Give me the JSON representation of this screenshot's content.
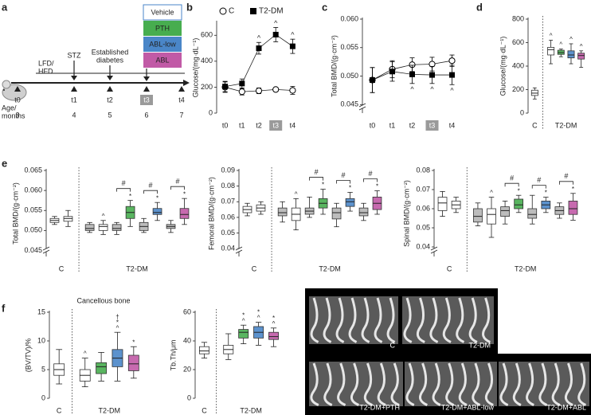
{
  "diagram": {
    "panel": "a",
    "legend": [
      {
        "label": "Vehicle",
        "color": "#ffffff"
      },
      {
        "label": "PTH",
        "color": "#47ad4f"
      },
      {
        "label": "ABL-low",
        "color": "#4a86c8"
      },
      {
        "label": "ABL",
        "color": "#c15aa6"
      }
    ],
    "diet": [
      "LFD/",
      "HFD"
    ],
    "events": [
      "STZ",
      "Established",
      "diabetes"
    ],
    "age_label": [
      "Age/",
      "months"
    ],
    "timepoints": [
      "t0",
      "t1",
      "t2",
      "t3",
      "t4"
    ],
    "ages": [
      3,
      4,
      5,
      6,
      7
    ]
  },
  "chart_data": [
    {
      "panel": "b",
      "type": "line",
      "ylabel": "Glucose/(mg·dL⁻¹)",
      "categories": [
        "t0",
        "t1",
        "t2",
        "t3",
        "t4"
      ],
      "highlight_category": 3,
      "ylim": [
        0,
        700
      ],
      "yticks": [
        0,
        200,
        400,
        600
      ],
      "legend": true,
      "series": [
        {
          "name": "C",
          "marker": "circle",
          "color": "#000000",
          "values": [
            200,
            165,
            172,
            182,
            175
          ],
          "errors": [
            40,
            25,
            22,
            15,
            30
          ]
        },
        {
          "name": "T2-DM",
          "marker": "square",
          "color": "#000000",
          "values": [
            205,
            228,
            500,
            605,
            515
          ],
          "errors": [
            40,
            35,
            45,
            55,
            55
          ],
          "notes": [
            null,
            null,
            "^",
            "^",
            "^"
          ]
        }
      ]
    },
    {
      "panel": "c",
      "type": "line",
      "ylabel": "Total BMD/(g·cm⁻²)",
      "categories": [
        "t0",
        "t1",
        "t2",
        "t3",
        "t4"
      ],
      "highlight_category": 3,
      "ylim": [
        0.0435,
        0.06
      ],
      "yticks": [
        0.045,
        {
          "value": 0.05,
          "label": "0.050"
        },
        0.055,
        {
          "value": 0.06,
          "label": "0.060"
        }
      ],
      "axis_break": true,
      "note_side": "below",
      "series": [
        {
          "name": "C",
          "marker": "circle",
          "color": "#000000",
          "values": [
            0.0493,
            0.0512,
            0.052,
            0.0521,
            0.0527
          ],
          "errors": [
            0.0022,
            0.0015,
            0.0012,
            0.0012,
            0.001
          ]
        },
        {
          "name": "T2-DM",
          "marker": "square",
          "color": "#000000",
          "values": [
            0.0493,
            0.0508,
            0.0503,
            0.0502,
            0.0502
          ],
          "errors": [
            0.0022,
            0.0017,
            0.0016,
            0.0015,
            0.0017
          ],
          "notes": [
            null,
            null,
            "^",
            "^",
            "^"
          ]
        }
      ]
    },
    {
      "panel": "d",
      "type": "box",
      "ylabel": "Glucose/(mg·dL⁻¹)",
      "ylim": [
        0,
        800
      ],
      "yticks": [
        0,
        200,
        400,
        600,
        800
      ],
      "groups": [
        {
          "label": "C",
          "boxes": [
            {
              "color": "#ffffff",
              "min": 120,
              "q1": 150,
              "median": 170,
              "q3": 195,
              "max": 215
            }
          ]
        },
        {
          "label": "T2-DM",
          "boxes": [
            {
              "color": "#ffffff",
              "min": 420,
              "q1": 495,
              "median": 540,
              "q3": 560,
              "max": 620,
              "notes": [
                "^"
              ]
            },
            {
              "color": "#47ad4f",
              "min": 480,
              "q1": 500,
              "median": 515,
              "q3": 535,
              "max": 545,
              "notes": [
                "^"
              ]
            },
            {
              "color": "#4a86c8",
              "min": 420,
              "q1": 470,
              "median": 495,
              "q3": 530,
              "max": 590,
              "notes": [
                "^"
              ]
            },
            {
              "color": "#c15aa6",
              "min": 390,
              "q1": 460,
              "median": 490,
              "q3": 510,
              "max": 530,
              "notes": [
                "^"
              ]
            }
          ]
        }
      ]
    },
    {
      "panel": "e",
      "type": "box",
      "ylabel": "Total BMD/(g·cm⁻²)",
      "ylim": [
        0.0435,
        0.065
      ],
      "axis_break": true,
      "yticks": [
        0.045,
        {
          "value": 0.05,
          "label": "0.050"
        },
        0.055,
        {
          "value": 0.06,
          "label": "0.060"
        },
        0.065
      ],
      "groups": [
        {
          "label": "C",
          "boxes": [
            {
              "color": "#ffffff",
              "min": 0.0515,
              "q1": 0.052,
              "median": 0.0525,
              "q3": 0.053,
              "max": 0.0535
            },
            {
              "color": "#ffffff",
              "min": 0.051,
              "q1": 0.0523,
              "median": 0.053,
              "q3": 0.0535,
              "max": 0.055
            }
          ]
        },
        {
          "label": "T2-DM",
          "boxes": [
            {
              "color": "#b5b5b5",
              "min": 0.0495,
              "q1": 0.05,
              "median": 0.0505,
              "q3": 0.0515,
              "max": 0.052
            },
            {
              "color": "#ffffff",
              "min": 0.049,
              "q1": 0.05,
              "median": 0.051,
              "q3": 0.0515,
              "max": 0.0525,
              "notes": [
                "^"
              ]
            },
            {
              "color": "#b5b5b5",
              "min": 0.049,
              "q1": 0.05,
              "median": 0.0505,
              "q3": 0.0515,
              "max": 0.052
            },
            {
              "color": "#47ad4f",
              "min": 0.051,
              "q1": 0.053,
              "median": 0.0545,
              "q3": 0.056,
              "max": 0.0575,
              "notes": [
                "*"
              ],
              "bracket": "#"
            },
            {
              "color": "#b5b5b5",
              "min": 0.0495,
              "q1": 0.05,
              "median": 0.051,
              "q3": 0.052,
              "max": 0.053
            },
            {
              "color": "#4a86c8",
              "min": 0.0525,
              "q1": 0.054,
              "median": 0.0545,
              "q3": 0.0555,
              "max": 0.057,
              "notes": [
                "*"
              ],
              "bracket": "#"
            },
            {
              "color": "#b5b5b5",
              "min": 0.0495,
              "q1": 0.0505,
              "median": 0.051,
              "q3": 0.0515,
              "max": 0.0525
            },
            {
              "color": "#c15aa6",
              "min": 0.0515,
              "q1": 0.053,
              "median": 0.054,
              "q3": 0.0555,
              "max": 0.058,
              "notes": [
                "*"
              ],
              "bracket": "#"
            }
          ]
        }
      ]
    },
    {
      "type": "box",
      "ylabel": "Femoral BMD/(g·cm⁻²)",
      "ylim": [
        0.035,
        0.09
      ],
      "axis_break": true,
      "yticks": [
        0.04,
        0.05,
        0.06,
        0.07,
        0.08,
        0.09
      ],
      "groups": [
        {
          "label": "C",
          "boxes": [
            {
              "color": "#ffffff",
              "min": 0.061,
              "q1": 0.063,
              "median": 0.065,
              "q3": 0.067,
              "max": 0.069
            },
            {
              "color": "#ffffff",
              "min": 0.062,
              "q1": 0.064,
              "median": 0.066,
              "q3": 0.068,
              "max": 0.07
            }
          ]
        },
        {
          "label": "T2-DM",
          "boxes": [
            {
              "color": "#b5b5b5",
              "min": 0.057,
              "q1": 0.061,
              "median": 0.063,
              "q3": 0.066,
              "max": 0.07
            },
            {
              "color": "#ffffff",
              "min": 0.052,
              "q1": 0.058,
              "median": 0.062,
              "q3": 0.066,
              "max": 0.072,
              "notes": [
                "^"
              ]
            },
            {
              "color": "#b5b5b5",
              "min": 0.06,
              "q1": 0.062,
              "median": 0.064,
              "q3": 0.066,
              "max": 0.073
            },
            {
              "color": "#47ad4f",
              "min": 0.062,
              "q1": 0.066,
              "median": 0.069,
              "q3": 0.072,
              "max": 0.078,
              "notes": [
                "*"
              ],
              "bracket": "#"
            },
            {
              "color": "#b5b5b5",
              "min": 0.054,
              "q1": 0.059,
              "median": 0.063,
              "q3": 0.066,
              "max": 0.069
            },
            {
              "color": "#4a86c8",
              "min": 0.064,
              "q1": 0.067,
              "median": 0.07,
              "q3": 0.072,
              "max": 0.076,
              "notes": [
                "*"
              ],
              "bracket": "#"
            },
            {
              "color": "#b5b5b5",
              "min": 0.058,
              "q1": 0.061,
              "median": 0.063,
              "q3": 0.066,
              "max": 0.069
            },
            {
              "color": "#c15aa6",
              "min": 0.062,
              "q1": 0.065,
              "median": 0.069,
              "q3": 0.073,
              "max": 0.077,
              "notes": [
                "*"
              ],
              "bracket": "#"
            }
          ]
        }
      ]
    },
    {
      "type": "box",
      "ylabel": "Spinal BMD/(g·cm⁻²)",
      "ylim": [
        0.035,
        0.08
      ],
      "axis_break": true,
      "yticks": [
        0.04,
        0.05,
        0.06,
        0.07,
        0.08
      ],
      "groups": [
        {
          "label": "C",
          "boxes": [
            {
              "color": "#ffffff",
              "min": 0.056,
              "q1": 0.059,
              "median": 0.063,
              "q3": 0.066,
              "max": 0.069
            },
            {
              "color": "#ffffff",
              "min": 0.058,
              "q1": 0.06,
              "median": 0.062,
              "q3": 0.064,
              "max": 0.066
            }
          ]
        },
        {
          "label": "T2-DM",
          "boxes": [
            {
              "color": "#b5b5b5",
              "min": 0.051,
              "q1": 0.053,
              "median": 0.056,
              "q3": 0.06,
              "max": 0.063
            },
            {
              "color": "#ffffff",
              "min": 0.045,
              "q1": 0.052,
              "median": 0.057,
              "q3": 0.06,
              "max": 0.066,
              "notes": [
                "^"
              ]
            },
            {
              "color": "#b5b5b5",
              "min": 0.052,
              "q1": 0.056,
              "median": 0.059,
              "q3": 0.061,
              "max": 0.064
            },
            {
              "color": "#47ad4f",
              "min": 0.058,
              "q1": 0.06,
              "median": 0.062,
              "q3": 0.065,
              "max": 0.067,
              "notes": [
                "*"
              ],
              "bracket": "#"
            },
            {
              "color": "#b5b5b5",
              "min": 0.052,
              "q1": 0.055,
              "median": 0.057,
              "q3": 0.06,
              "max": 0.067
            },
            {
              "color": "#4a86c8",
              "min": 0.058,
              "q1": 0.06,
              "median": 0.062,
              "q3": 0.064,
              "max": 0.066,
              "notes": [
                "*"
              ],
              "bracket": "#"
            },
            {
              "color": "#b5b5b5",
              "min": 0.055,
              "q1": 0.057,
              "median": 0.059,
              "q3": 0.061,
              "max": 0.063
            },
            {
              "color": "#c15aa6",
              "min": 0.054,
              "q1": 0.057,
              "median": 0.06,
              "q3": 0.064,
              "max": 0.068,
              "notes": [
                "*"
              ],
              "bracket": "#"
            }
          ]
        }
      ]
    },
    {
      "panel": "f",
      "type": "box",
      "title": "Cancellous bone",
      "ylabel": "(BV/TV)/%",
      "ylim": [
        0,
        15
      ],
      "yticks": [
        0,
        5,
        10,
        15
      ],
      "groups": [
        {
          "label": "C",
          "boxes": [
            {
              "color": "#ffffff",
              "min": 2.5,
              "q1": 4,
              "median": 5,
              "q3": 6,
              "max": 8.5
            }
          ]
        },
        {
          "label": "T2-DM",
          "boxes": [
            {
              "color": "#ffffff",
              "min": 2,
              "q1": 3,
              "median": 4,
              "q3": 5,
              "max": 7,
              "notes": [
                "^"
              ]
            },
            {
              "color": "#47ad4f",
              "min": 3,
              "q1": 4.3,
              "median": 5.5,
              "q3": 6.2,
              "max": 8
            },
            {
              "color": "#4a86c8",
              "min": 3,
              "q1": 5.5,
              "median": 7,
              "q3": 8.5,
              "max": 11.5,
              "notes": [
                "†",
                "*",
                "^"
              ]
            },
            {
              "color": "#c15aa6",
              "min": 3.5,
              "q1": 4.8,
              "median": 6,
              "q3": 7.5,
              "max": 9,
              "notes": [
                "*"
              ]
            }
          ]
        }
      ]
    },
    {
      "type": "box",
      "ylabel": "Tb.Th/μm",
      "ylim": [
        0,
        60
      ],
      "yticks": [
        0,
        20,
        40,
        60
      ],
      "groups": [
        {
          "label": "C",
          "boxes": [
            {
              "color": "#ffffff",
              "min": 28,
              "q1": 31,
              "median": 33,
              "q3": 36,
              "max": 39
            }
          ]
        },
        {
          "label": "T2-DM",
          "boxes": [
            {
              "color": "#ffffff",
              "min": 27,
              "q1": 31,
              "median": 34,
              "q3": 37,
              "max": 45
            },
            {
              "color": "#47ad4f",
              "min": 38,
              "q1": 42,
              "median": 46,
              "q3": 48,
              "max": 51,
              "notes": [
                "*",
                "^"
              ]
            },
            {
              "color": "#4a86c8",
              "min": 37,
              "q1": 42,
              "median": 46,
              "q3": 50,
              "max": 53,
              "notes": [
                "*",
                "^"
              ]
            },
            {
              "color": "#c15aa6",
              "min": 36,
              "q1": 41,
              "median": 43,
              "q3": 46,
              "max": 49,
              "notes": [
                "*",
                "^"
              ]
            }
          ]
        }
      ]
    }
  ],
  "images": {
    "labels": [
      "C",
      "T2-DM",
      "T2-DM+PTH",
      "T2-DM+ABL-low",
      "T2-DM+ABL"
    ]
  }
}
